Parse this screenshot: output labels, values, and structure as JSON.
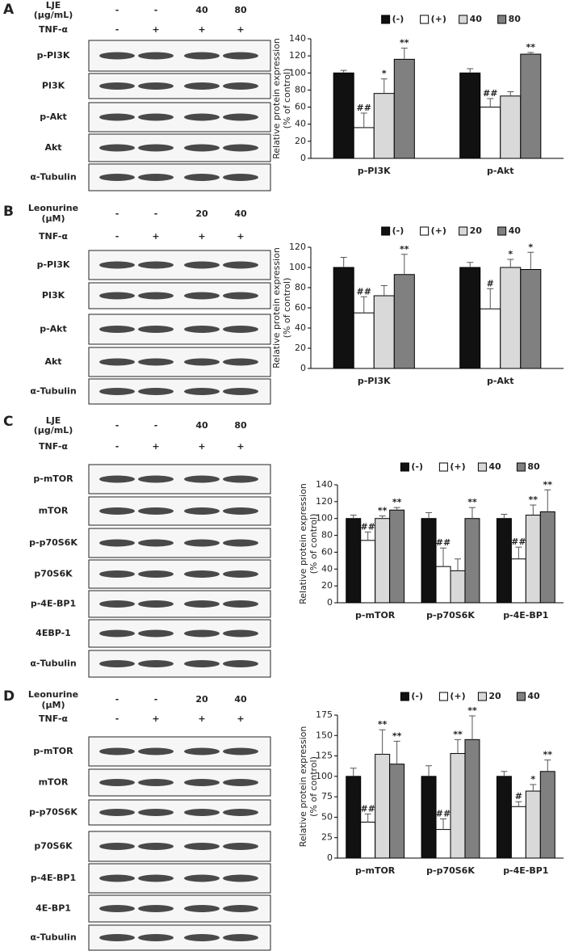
{
  "panels": [
    {
      "letter": "A",
      "treatment": [
        "LJE",
        "(μg/mL)"
      ],
      "treatment_values": [
        "-",
        "-",
        "40",
        "80"
      ],
      "stimulus": "TNF-α",
      "stimulus_values": [
        "-",
        "+",
        "+",
        "+"
      ],
      "blots": [
        "p-PI3K",
        "PI3K",
        "p-Akt",
        "Akt",
        "α-Tubulin"
      ]
    },
    {
      "letter": "B",
      "treatment": [
        "Leonurine",
        "(μM)"
      ],
      "treatment_values": [
        "-",
        "-",
        "20",
        "40"
      ],
      "stimulus": "TNF-α",
      "stimulus_values": [
        "-",
        "+",
        "+",
        "+"
      ],
      "blots": [
        "p-PI3K",
        "PI3K",
        "p-Akt",
        "Akt",
        "α-Tubulin"
      ]
    },
    {
      "letter": "C",
      "treatment": [
        "LJE",
        "(μg/mL)"
      ],
      "treatment_values": [
        "-",
        "-",
        "40",
        "80"
      ],
      "stimulus": "TNF-α",
      "stimulus_values": [
        "-",
        "+",
        "+",
        "+"
      ],
      "blots": [
        "p-mTOR",
        "mTOR",
        "p-p70S6K",
        "p70S6K",
        "p-4E-BP1",
        "4EBP-1",
        "α-Tubulin"
      ]
    },
    {
      "letter": "D",
      "treatment": [
        "Leonurine",
        "(μM)"
      ],
      "treatment_values": [
        "-",
        "-",
        "20",
        "40"
      ],
      "stimulus": "TNF-α",
      "stimulus_values": [
        "-",
        "+",
        "+",
        "+"
      ],
      "blots": [
        "p-mTOR",
        "mTOR",
        "p-p70S6K",
        "p70S6K",
        "p-4E-BP1",
        "4E-BP1",
        "α-Tubulin"
      ]
    }
  ],
  "chart_data": [
    {
      "type": "bar",
      "ylabel": [
        "Relative protein expression",
        "(% of control)"
      ],
      "categories": [
        "p-PI3K",
        "p-Akt"
      ],
      "series": [
        {
          "name": "(-)",
          "color": "#111111",
          "values": [
            100,
            100
          ],
          "errors": [
            3,
            5
          ],
          "significance": [
            null,
            null
          ]
        },
        {
          "name": "(+)",
          "color": "#ffffff",
          "values": [
            36,
            60
          ],
          "errors": [
            17,
            10
          ],
          "significance": [
            "##",
            "##"
          ]
        },
        {
          "name": "40",
          "color": "#d9d9d9",
          "values": [
            76,
            73
          ],
          "errors": [
            17,
            5
          ],
          "significance": [
            "*",
            null
          ]
        },
        {
          "name": "80",
          "color": "#808080",
          "values": [
            116,
            122
          ],
          "errors": [
            13,
            2
          ],
          "significance": [
            "**",
            "**"
          ]
        }
      ],
      "ylim": [
        0,
        140
      ],
      "yticks": [
        0,
        20,
        40,
        60,
        80,
        100,
        120,
        140
      ],
      "legend": "top"
    },
    {
      "type": "bar",
      "ylabel": [
        "Relative protein expression",
        "(% of control)"
      ],
      "categories": [
        "p-PI3K",
        "p-Akt"
      ],
      "series": [
        {
          "name": "(-)",
          "color": "#111111",
          "values": [
            100,
            100
          ],
          "errors": [
            10,
            5
          ],
          "significance": [
            null,
            null
          ]
        },
        {
          "name": "(+)",
          "color": "#ffffff",
          "values": [
            55,
            59
          ],
          "errors": [
            16,
            20
          ],
          "significance": [
            "##",
            "#"
          ]
        },
        {
          "name": "20",
          "color": "#d9d9d9",
          "values": [
            72,
            100
          ],
          "errors": [
            10,
            8
          ],
          "significance": [
            null,
            "*"
          ]
        },
        {
          "name": "40",
          "color": "#808080",
          "values": [
            93,
            98
          ],
          "errors": [
            20,
            17
          ],
          "significance": [
            "**",
            "*"
          ]
        }
      ],
      "ylim": [
        0,
        120
      ],
      "yticks": [
        0,
        20,
        40,
        60,
        80,
        100,
        120
      ],
      "legend": "top"
    },
    {
      "type": "bar",
      "ylabel": [
        "Relative protein expression",
        "(% of control)"
      ],
      "categories": [
        "p-mTOR",
        "p-p70S6K",
        "p-4E-BP1"
      ],
      "series": [
        {
          "name": "(-)",
          "color": "#111111",
          "values": [
            100,
            100,
            100
          ],
          "errors": [
            4,
            7,
            5
          ],
          "significance": [
            null,
            null,
            null
          ]
        },
        {
          "name": "(+)",
          "color": "#ffffff",
          "values": [
            74,
            43,
            52
          ],
          "errors": [
            10,
            22,
            14
          ],
          "significance": [
            "##",
            "##",
            "##"
          ]
        },
        {
          "name": "40",
          "color": "#d9d9d9",
          "values": [
            100,
            38,
            104
          ],
          "errors": [
            3,
            14,
            12
          ],
          "significance": [
            "**",
            null,
            "**"
          ]
        },
        {
          "name": "80",
          "color": "#808080",
          "values": [
            110,
            100,
            108
          ],
          "errors": [
            3,
            13,
            26
          ],
          "significance": [
            "**",
            "**",
            "**"
          ]
        }
      ],
      "ylim": [
        0,
        140
      ],
      "yticks": [
        0,
        20,
        40,
        60,
        80,
        100,
        120,
        140
      ],
      "legend": "top"
    },
    {
      "type": "bar",
      "ylabel": [
        "Relative protein expression",
        "(% of control)"
      ],
      "categories": [
        "p-mTOR",
        "p-p70S6K",
        "p-4E-BP1"
      ],
      "series": [
        {
          "name": "(-)",
          "color": "#111111",
          "values": [
            100,
            100,
            100
          ],
          "errors": [
            10,
            13,
            6
          ],
          "significance": [
            null,
            null,
            null
          ]
        },
        {
          "name": "(+)",
          "color": "#ffffff",
          "values": [
            44,
            35,
            63
          ],
          "errors": [
            10,
            13,
            6
          ],
          "significance": [
            "##",
            "##",
            "#"
          ]
        },
        {
          "name": "20",
          "color": "#d9d9d9",
          "values": [
            127,
            128,
            82
          ],
          "errors": [
            30,
            17,
            8
          ],
          "significance": [
            "**",
            "**",
            "*"
          ]
        },
        {
          "name": "40",
          "color": "#808080",
          "values": [
            115,
            145,
            106
          ],
          "errors": [
            28,
            29,
            14
          ],
          "significance": [
            "**",
            "**",
            "**"
          ]
        }
      ],
      "ylim": [
        0,
        175
      ],
      "yticks": [
        0,
        25,
        50,
        75,
        100,
        125,
        150,
        175
      ],
      "legend": "top"
    }
  ]
}
